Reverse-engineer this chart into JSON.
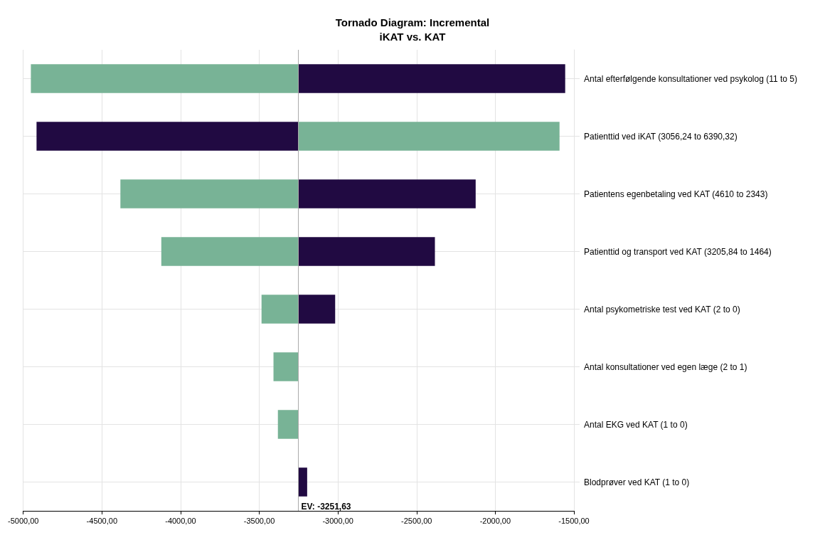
{
  "chart_data": {
    "type": "bar",
    "orientation": "horizontal",
    "title": "Tornado Diagram: Incremental\niKAT vs. KAT",
    "categories": [
      "Antal efterfølgende konsultationer ved psykolog (11 to 5)",
      "Patienttid ved iKAT (3056,24 to 6390,32)",
      "Patientens egenbetaling ved KAT (4610 to 2343)",
      "Patienttid og transport ved KAT (3205,84 to 1464)",
      "Antal psykometriske test ved KAT (2 to 0)",
      "Antal konsultationer ved egen læge (2 to 1)",
      "Antal EKG ved KAT (1 to 0)",
      "Blodprøver ved KAT (1 to 0)"
    ],
    "series": [
      {
        "color": "#78b396",
        "base": [
          -3251.63,
          -3251.63,
          -3251.63,
          -3251.63,
          -3251.63,
          -3251.63,
          -3251.63,
          null
        ],
        "values": [
          -1700,
          1660,
          -1131,
          -871,
          -234,
          -158,
          -130,
          null
        ]
      },
      {
        "color": "#210a42",
        "base": [
          -3251.63,
          -3251.63,
          -3251.63,
          -3251.63,
          -3251.63,
          null,
          null,
          -3251.63
        ],
        "values": [
          1696,
          -1664,
          1127,
          868,
          234,
          null,
          null,
          56
        ]
      }
    ],
    "xlim": [
      -5000,
      -1500
    ],
    "xticks": [
      {
        "value": -5000,
        "label": "-5000,00"
      },
      {
        "value": -4500,
        "label": "-4500,00"
      },
      {
        "value": -4000,
        "label": "-4000,00"
      },
      {
        "value": -3500,
        "label": "-3500,00"
      },
      {
        "value": -3000,
        "label": "-3000,00"
      },
      {
        "value": -2500,
        "label": "-2500,00"
      },
      {
        "value": -2000,
        "label": "-2000,00"
      },
      {
        "value": -1500,
        "label": "-1500,00"
      }
    ],
    "ref_lines": [
      {
        "axis": "x",
        "value": -3251.63,
        "label": "EV: -3251,63",
        "color": "#aaaaaa"
      }
    ],
    "grid": true
  }
}
